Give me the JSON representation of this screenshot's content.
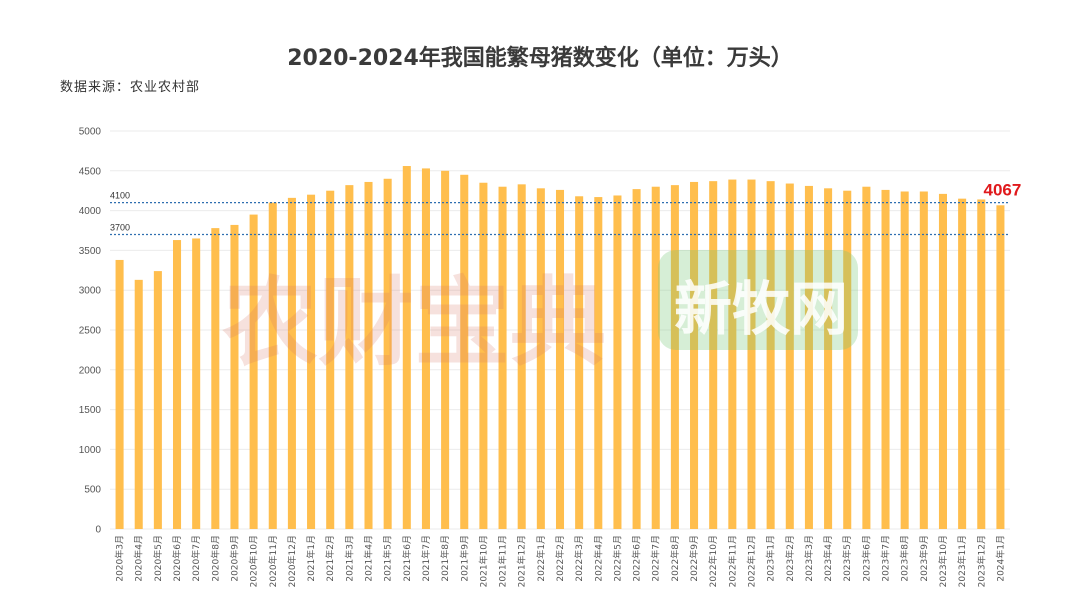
{
  "title": "2020-2024年我国能繁母猪数变化（单位：万头）",
  "source": "数据来源：农业农村部",
  "watermarks": {
    "left": "农财宝典",
    "right": "新牧网"
  },
  "colors": {
    "bar": "#FFBE4D",
    "ref_line": "#2F6FB0",
    "callout": "#E0191C",
    "grid": "#EBEBEB"
  },
  "chart_data": {
    "type": "bar",
    "title": "2020-2024年我国能繁母猪数变化（单位：万头）",
    "xlabel": "",
    "ylabel": "",
    "ylim": [
      0,
      5000
    ],
    "yticks": [
      0,
      500,
      1000,
      1500,
      2000,
      2500,
      3000,
      3500,
      4000,
      4500,
      5000
    ],
    "grid": true,
    "categories": [
      "2020年3月",
      "2020年4月",
      "2020年5月",
      "2020年6月",
      "2020年7月",
      "2020年8月",
      "2020年9月",
      "2020年10月",
      "2020年11月",
      "2020年12月",
      "2021年1月",
      "2021年2月",
      "2021年3月",
      "2021年4月",
      "2021年5月",
      "2021年6月",
      "2021年7月",
      "2021年8月",
      "2021年9月",
      "2021年10月",
      "2021年11月",
      "2021年12月",
      "2022年1月",
      "2022年2月",
      "2022年3月",
      "2022年4月",
      "2022年5月",
      "2022年6月",
      "2022年7月",
      "2022年8月",
      "2022年9月",
      "2022年10月",
      "2022年11月",
      "2022年12月",
      "2023年1月",
      "2023年2月",
      "2023年3月",
      "2023年4月",
      "2023年5月",
      "2023年6月",
      "2023年7月",
      "2023年8月",
      "2023年9月",
      "2023年10月",
      "2023年11月",
      "2023年12月",
      "2024年1月"
    ],
    "values": [
      3380,
      3130,
      3240,
      3630,
      3650,
      3780,
      3820,
      3950,
      4100,
      4160,
      4200,
      4250,
      4320,
      4360,
      4400,
      4560,
      4530,
      4500,
      4450,
      4350,
      4300,
      4330,
      4280,
      4260,
      4180,
      4170,
      4190,
      4270,
      4300,
      4320,
      4360,
      4370,
      4390,
      4390,
      4370,
      4340,
      4310,
      4280,
      4250,
      4300,
      4260,
      4240,
      4240,
      4210,
      4150,
      4140,
      4067
    ],
    "reference_lines": [
      {
        "value": 4100,
        "label": "4100"
      },
      {
        "value": 3700,
        "label": "3700"
      }
    ],
    "callout": {
      "category": "2024年1月",
      "value": 4067,
      "label": "4067"
    }
  }
}
